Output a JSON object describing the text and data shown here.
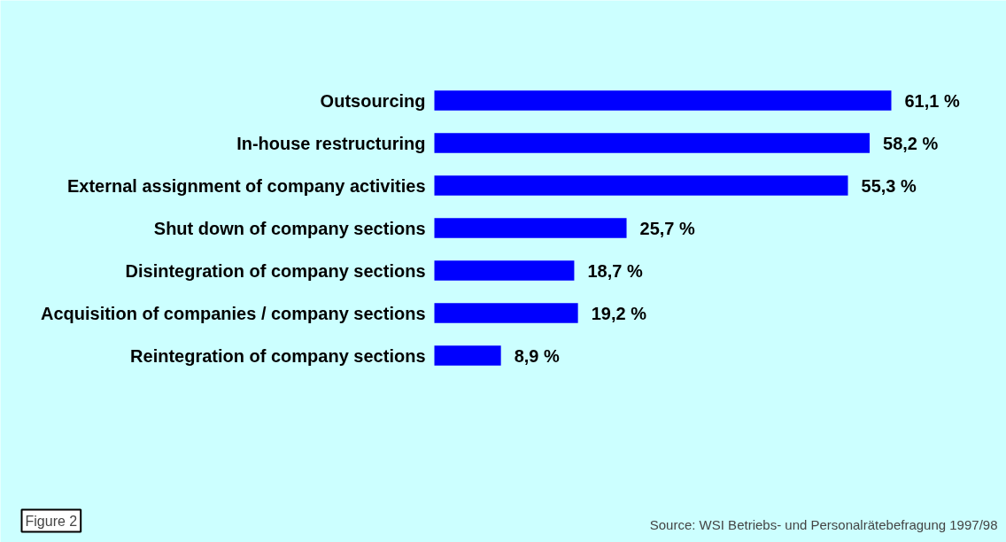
{
  "chart_data": {
    "type": "bar",
    "orientation": "horizontal",
    "categories": [
      "Outsourcing",
      "In-house restructuring",
      "External assignment of company activities",
      "Shut down of company sections",
      "Disintegration of company sections",
      "Acquisition of companies / company sections",
      "Reintegration of company sections"
    ],
    "values": [
      61.1,
      58.2,
      55.3,
      25.7,
      18.7,
      19.2,
      8.9
    ],
    "value_labels": [
      "61,1 %",
      "58,2 %",
      "55,3 %",
      "25,7 %",
      "18,7 %",
      "19,2 %",
      "8,9 %"
    ],
    "color": "#0000ff",
    "annotations": [
      "Figure 2",
      "Source: WSI Betriebs- und Personalrätebefragung 1997/98"
    ],
    "grid": false
  }
}
